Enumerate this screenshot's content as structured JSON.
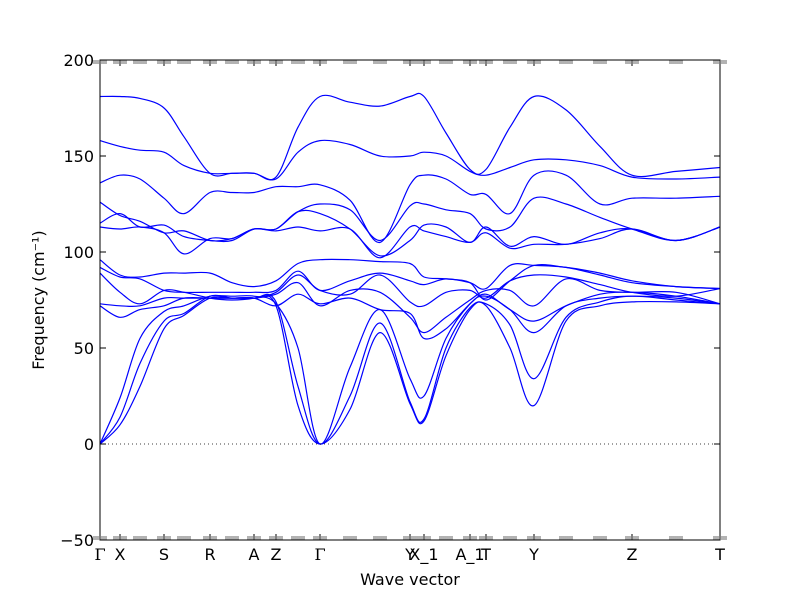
{
  "chart_data": {
    "type": "line",
    "title": "",
    "xlabel": "Wave vector",
    "ylabel": "Frequency",
    "ylabel_unit": "(cm⁻¹)",
    "ylim": [
      -50,
      200
    ],
    "yticks": [
      -50,
      0,
      50,
      100,
      150,
      200
    ],
    "xlim": [
      0,
      31
    ],
    "grid": false,
    "legend": "none",
    "zero_line": true,
    "line_color": "#0000ff",
    "high_symmetry_points": [
      {
        "label": "Γ",
        "x": 0
      },
      {
        "label": "X",
        "x": 1
      },
      {
        "label": "S",
        "x": 3.2
      },
      {
        "label": "R",
        "x": 5.5
      },
      {
        "label": "A",
        "x": 7.7
      },
      {
        "label": "Z",
        "x": 8.8
      },
      {
        "label": "Γ",
        "x": 11
      },
      {
        "label": "Y",
        "x": 15.5
      },
      {
        "label": "X_1",
        "x": 16.2
      },
      {
        "label": "A_1",
        "x": 18.5
      },
      {
        "label": "T",
        "x": 19.3
      },
      {
        "label": "Y",
        "x": 21.7
      },
      {
        "label": "Z",
        "x": 26.6
      },
      {
        "label": "T",
        "x": 31
      }
    ],
    "x": [
      0,
      1,
      2,
      3.2,
      4.2,
      5.5,
      6.6,
      7.7,
      8.8,
      9.9,
      11,
      12.5,
      14,
      15.5,
      16.2,
      17.3,
      18.5,
      19.3,
      20.5,
      21.7,
      23.3,
      25,
      26.6,
      28.8,
      31
    ],
    "series": [
      {
        "values": [
          181,
          181,
          180,
          175,
          160,
          141,
          141,
          141,
          139,
          165,
          181,
          178,
          176,
          181,
          181,
          162,
          143,
          143,
          165,
          181,
          174,
          155,
          140,
          142,
          144
        ]
      },
      {
        "values": [
          158,
          155,
          153,
          152,
          145,
          141,
          141,
          141,
          138,
          152,
          158,
          156,
          150,
          150,
          152,
          150,
          142,
          140,
          144,
          148,
          148,
          145,
          139,
          138,
          139
        ]
      },
      {
        "values": [
          136,
          140,
          138,
          128,
          120,
          131,
          131,
          131,
          134,
          134,
          135,
          127,
          105,
          135,
          140,
          138,
          130,
          130,
          120,
          140,
          140,
          125,
          128,
          128,
          129
        ]
      },
      {
        "values": [
          126,
          119,
          116,
          110,
          111,
          106,
          107,
          112,
          112,
          121,
          125,
          122,
          106,
          124,
          125,
          122,
          120,
          112,
          113,
          128,
          125,
          118,
          112,
          106,
          113
        ]
      },
      {
        "values": [
          115,
          120,
          113,
          114,
          108,
          106,
          106,
          112,
          112,
          121,
          120,
          112,
          98,
          106,
          114,
          113,
          105,
          113,
          103,
          108,
          104,
          110,
          112,
          106,
          113
        ]
      },
      {
        "values": [
          113,
          112,
          113,
          110,
          99,
          107,
          107,
          112,
          111,
          113,
          111,
          112,
          97,
          113,
          111,
          108,
          105,
          110,
          102,
          104,
          104,
          107,
          112,
          106,
          113
        ]
      },
      {
        "values": [
          96,
          88,
          87,
          89,
          89,
          89,
          84,
          82,
          85,
          94,
          96,
          96,
          95,
          94,
          87,
          86,
          84,
          75,
          85,
          93,
          92,
          89,
          85,
          82,
          81
        ]
      },
      {
        "values": [
          92,
          87,
          86,
          80,
          79,
          79,
          79,
          79,
          80,
          90,
          80,
          85,
          89,
          85,
          83,
          86,
          84,
          81,
          93,
          93,
          92,
          88,
          84,
          82,
          81
        ]
      },
      {
        "values": [
          89,
          79,
          73,
          80,
          79,
          76,
          75,
          76,
          79,
          88,
          80,
          78,
          88,
          74,
          72,
          79,
          80,
          76,
          85,
          88,
          87,
          83,
          79,
          77,
          81
        ]
      },
      {
        "values": [
          73,
          72,
          72,
          76,
          76,
          76,
          76,
          76,
          78,
          84,
          72,
          80,
          79,
          66,
          58,
          66,
          75,
          80,
          80,
          72,
          86,
          80,
          79,
          79,
          73
        ]
      },
      {
        "values": [
          72,
          66,
          70,
          72,
          76,
          76,
          76,
          76,
          72,
          78,
          73,
          76,
          70,
          68,
          55,
          60,
          73,
          78,
          70,
          64,
          72,
          78,
          79,
          77,
          73
        ]
      },
      {
        "values": [
          0,
          24,
          55,
          69,
          72,
          77,
          77,
          77,
          73,
          50,
          0,
          40,
          70,
          34,
          25,
          55,
          73,
          77,
          70,
          58,
          72,
          76,
          77,
          76,
          73
        ]
      },
      {
        "values": [
          0,
          14,
          42,
          64,
          68,
          77,
          76,
          76,
          74,
          30,
          0,
          25,
          63,
          22,
          13,
          50,
          71,
          73,
          62,
          34,
          66,
          74,
          77,
          75,
          73
        ]
      },
      {
        "values": [
          0,
          10,
          30,
          60,
          67,
          76,
          76,
          76,
          72,
          20,
          0,
          18,
          58,
          21,
          12,
          46,
          70,
          72,
          50,
          20,
          64,
          72,
          74,
          74,
          73
        ]
      }
    ]
  }
}
